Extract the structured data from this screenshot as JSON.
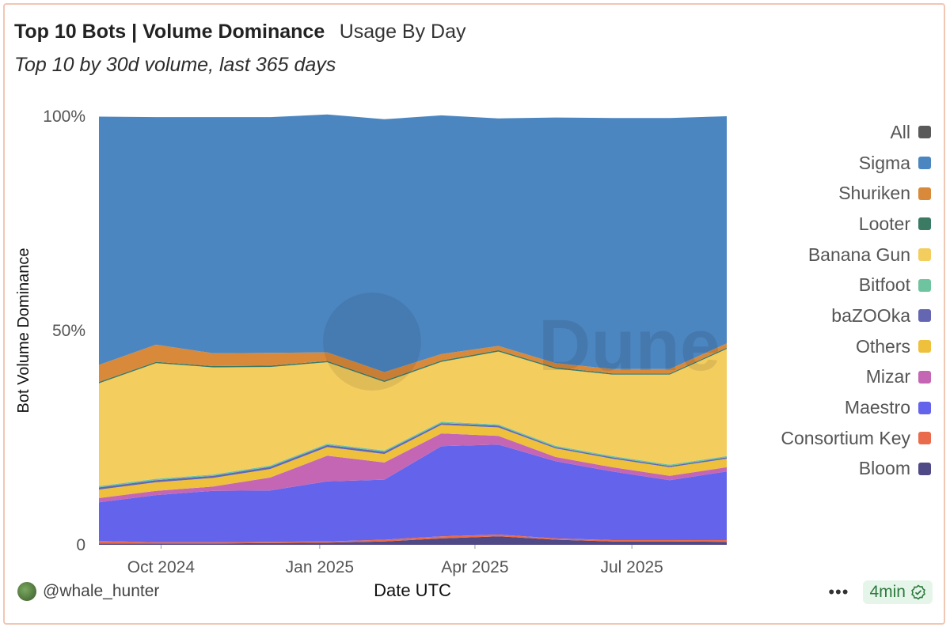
{
  "header": {
    "title": "Top 10 Bots | Volume Dominance",
    "subtitle": "Usage By Day",
    "description": "Top 10 by 30d volume, last 365 days"
  },
  "footer": {
    "author": "@whale_hunter",
    "more_label": "•••",
    "refresh_label": "4min"
  },
  "watermark": "Dune",
  "chart_data": {
    "type": "area",
    "stacked": true,
    "normalized": true,
    "xlabel": "Date UTC",
    "ylabel": "Bot Volume Dominance",
    "x_range": [
      "2024-08-26",
      "2025-08-25"
    ],
    "x_ticks": [
      "Oct 2024",
      "Jan 2025",
      "Apr 2025",
      "Jul 2025"
    ],
    "y_ticks": [
      "0",
      "50%",
      "100%"
    ],
    "ylim": [
      0,
      100
    ],
    "legend_position": "right",
    "legend": [
      {
        "name": "All",
        "color": "#5a5a5a"
      },
      {
        "name": "Sigma",
        "color": "#4c86c0"
      },
      {
        "name": "Shuriken",
        "color": "#d9893a"
      },
      {
        "name": "Looter",
        "color": "#3b7a63"
      },
      {
        "name": "Banana Gun",
        "color": "#f4cd5f"
      },
      {
        "name": "Bitfoot",
        "color": "#6fc4a0"
      },
      {
        "name": "baZOOka",
        "color": "#6466b2"
      },
      {
        "name": "Others",
        "color": "#eec03c"
      },
      {
        "name": "Mizar",
        "color": "#c466b4"
      },
      {
        "name": "Maestro",
        "color": "#6463ec"
      },
      {
        "name": "Consortium Key",
        "color": "#e96b4b"
      },
      {
        "name": "Bloom",
        "color": "#4f4a86"
      }
    ],
    "x": [
      "Sep 2024",
      "Oct 2024",
      "Nov 2024",
      "Dec 2024",
      "Jan 2025",
      "Feb 2025",
      "Mar 2025",
      "Apr 2025",
      "May 2025",
      "Jun 2025",
      "Jul 2025",
      "Aug 2025"
    ],
    "series": [
      {
        "name": "Bloom",
        "values": [
          0.3,
          0.3,
          0.3,
          0.4,
          0.5,
          0.8,
          1.5,
          2.0,
          1.2,
          0.8,
          0.8,
          0.7
        ]
      },
      {
        "name": "Consortium Key",
        "values": [
          0.6,
          0.3,
          0.3,
          0.3,
          0.3,
          0.4,
          0.5,
          0.4,
          0.3,
          0.3,
          0.3,
          0.4
        ]
      },
      {
        "name": "Maestro",
        "values": [
          9,
          11,
          12,
          12,
          14,
          14,
          21,
          21,
          18,
          16,
          14,
          16
        ]
      },
      {
        "name": "Mizar",
        "values": [
          1,
          1,
          1,
          3,
          6,
          4,
          3,
          2,
          1,
          1,
          1,
          1
        ]
      },
      {
        "name": "Others",
        "values": [
          2,
          2,
          2,
          2,
          2,
          2,
          2,
          2,
          2,
          2,
          2,
          2
        ]
      },
      {
        "name": "baZOOka",
        "values": [
          0.5,
          0.5,
          0.5,
          0.5,
          0.5,
          0.5,
          0.4,
          0.4,
          0.3,
          0.3,
          0.3,
          0.3
        ]
      },
      {
        "name": "Bitfoot",
        "values": [
          0.3,
          0.3,
          0.3,
          0.3,
          0.3,
          0.3,
          0.3,
          0.3,
          0.3,
          0.3,
          0.3,
          0.3
        ]
      },
      {
        "name": "Banana Gun",
        "values": [
          24,
          27,
          25,
          23,
          19,
          16,
          14,
          17,
          18,
          19,
          21,
          25
        ]
      },
      {
        "name": "Looter",
        "values": [
          0.3,
          0.3,
          0.3,
          0.3,
          0.3,
          0.3,
          0.3,
          0.3,
          0.3,
          0.3,
          0.3,
          0.3
        ]
      },
      {
        "name": "Shuriken",
        "values": [
          4,
          4,
          3,
          3,
          2,
          2,
          1.5,
          1,
          1,
          1,
          1,
          1
        ]
      },
      {
        "name": "Sigma",
        "values": [
          57.9,
          53.1,
          55.1,
          55.0,
          55.5,
          59.0,
          55.7,
          53.1,
          57.3,
          58.6,
          58.6,
          53.0
        ]
      }
    ]
  }
}
